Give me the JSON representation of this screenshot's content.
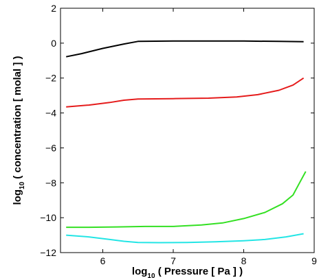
{
  "chart_data": {
    "type": "line",
    "xlabel_base": "log",
    "xlabel_sub": "10",
    "xlabel_rest": " ( Pressure [ Pa ] )",
    "ylabel_base": "log",
    "ylabel_sub": "10",
    "ylabel_rest": " ( concentration [ molal ] )",
    "xlim": [
      5.4,
      9
    ],
    "ylim": [
      -12,
      2
    ],
    "xticks": [
      6,
      7,
      8,
      9
    ],
    "yticks": [
      2,
      0,
      -2,
      -4,
      -6,
      -8,
      -10,
      -12
    ],
    "xtick_labels": [
      "6",
      "7",
      "8",
      "9"
    ],
    "ytick_labels": [
      "2",
      "0",
      "−2",
      "−4",
      "−6",
      "−8",
      "−10",
      "−12"
    ],
    "grid": false,
    "series": [
      {
        "color": "#000000",
        "points": [
          [
            5.48,
            -0.78
          ],
          [
            5.7,
            -0.6
          ],
          [
            6.0,
            -0.3
          ],
          [
            6.3,
            -0.05
          ],
          [
            6.5,
            0.1
          ],
          [
            7.0,
            0.12
          ],
          [
            7.5,
            0.12
          ],
          [
            8.0,
            0.12
          ],
          [
            8.5,
            0.1
          ],
          [
            8.85,
            0.08
          ]
        ]
      },
      {
        "color": "#e51b1b",
        "points": [
          [
            5.48,
            -3.65
          ],
          [
            5.8,
            -3.55
          ],
          [
            6.1,
            -3.4
          ],
          [
            6.3,
            -3.27
          ],
          [
            6.5,
            -3.2
          ],
          [
            7.0,
            -3.18
          ],
          [
            7.5,
            -3.15
          ],
          [
            7.9,
            -3.08
          ],
          [
            8.2,
            -2.95
          ],
          [
            8.5,
            -2.7
          ],
          [
            8.7,
            -2.4
          ],
          [
            8.85,
            -2.0
          ]
        ]
      },
      {
        "color": "#33e022",
        "points": [
          [
            5.48,
            -10.55
          ],
          [
            5.8,
            -10.55
          ],
          [
            6.2,
            -10.53
          ],
          [
            6.6,
            -10.5
          ],
          [
            7.0,
            -10.5
          ],
          [
            7.4,
            -10.42
          ],
          [
            7.7,
            -10.3
          ],
          [
            8.0,
            -10.05
          ],
          [
            8.3,
            -9.7
          ],
          [
            8.55,
            -9.2
          ],
          [
            8.7,
            -8.7
          ],
          [
            8.78,
            -8.1
          ],
          [
            8.88,
            -7.35
          ]
        ]
      },
      {
        "color": "#22e5e5",
        "points": [
          [
            5.48,
            -11.0
          ],
          [
            5.8,
            -11.1
          ],
          [
            6.1,
            -11.25
          ],
          [
            6.3,
            -11.35
          ],
          [
            6.5,
            -11.42
          ],
          [
            6.8,
            -11.43
          ],
          [
            7.2,
            -11.42
          ],
          [
            7.6,
            -11.38
          ],
          [
            8.0,
            -11.32
          ],
          [
            8.3,
            -11.25
          ],
          [
            8.6,
            -11.1
          ],
          [
            8.85,
            -10.92
          ]
        ]
      }
    ]
  }
}
